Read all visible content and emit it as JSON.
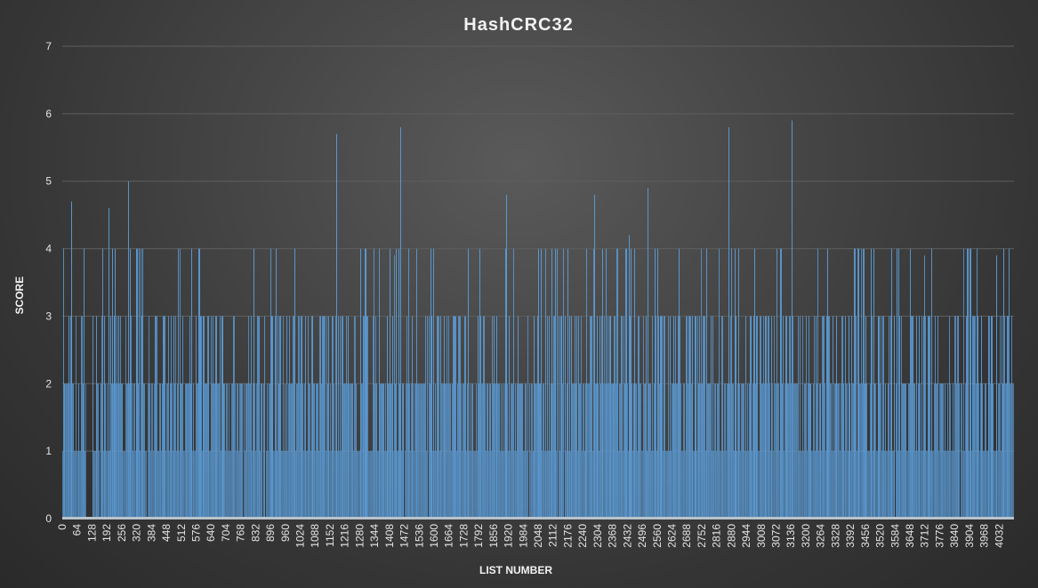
{
  "chart_data": {
    "type": "bar",
    "title": "HashCRC32",
    "xlabel": "LIST NUMBER",
    "ylabel": "SCORE",
    "ylim": [
      0,
      7
    ],
    "yticks": [
      "0",
      "1",
      "2",
      "3",
      "4",
      "5",
      "6",
      "7"
    ],
    "xlim": [
      0,
      4095
    ],
    "xticks": [
      "0",
      "64",
      "128",
      "192",
      "256",
      "320",
      "384",
      "448",
      "512",
      "576",
      "640",
      "704",
      "768",
      "832",
      "896",
      "960",
      "1024",
      "1088",
      "1152",
      "1216",
      "1280",
      "1344",
      "1408",
      "1472",
      "1536",
      "1600",
      "1664",
      "1728",
      "1792",
      "1856",
      "1920",
      "1984",
      "2048",
      "2112",
      "2176",
      "2240",
      "2304",
      "2368",
      "2432",
      "2496",
      "2560",
      "2624",
      "2688",
      "2752",
      "2816",
      "2880",
      "2944",
      "3008",
      "3072",
      "3136",
      "3200",
      "3264",
      "3328",
      "3392",
      "3456",
      "3520",
      "3584",
      "3648",
      "3712",
      "3776",
      "3840",
      "3904",
      "3968",
      "4032"
    ],
    "grid": true,
    "bar_color": "#5b9bd5",
    "notable_values": [
      {
        "x": 8,
        "value": 1
      },
      {
        "x": 30,
        "value": 2
      },
      {
        "x": 40,
        "value": 4.7
      },
      {
        "x": 96,
        "value": 1
      },
      {
        "x": 150,
        "value": 1
      },
      {
        "x": 180,
        "value": 2
      },
      {
        "x": 200,
        "value": 4.6
      },
      {
        "x": 220,
        "value": 1
      },
      {
        "x": 260,
        "value": 1
      },
      {
        "x": 285,
        "value": 5
      },
      {
        "x": 300,
        "value": 2
      },
      {
        "x": 330,
        "value": 4
      },
      {
        "x": 420,
        "value": 1
      },
      {
        "x": 500,
        "value": 4
      },
      {
        "x": 600,
        "value": 3
      },
      {
        "x": 620,
        "value": 2
      },
      {
        "x": 730,
        "value": 2
      },
      {
        "x": 860,
        "value": 2
      },
      {
        "x": 920,
        "value": 4
      },
      {
        "x": 1000,
        "value": 4
      },
      {
        "x": 1060,
        "value": 1
      },
      {
        "x": 1100,
        "value": 2
      },
      {
        "x": 1180,
        "value": 5.7
      },
      {
        "x": 1250,
        "value": 2
      },
      {
        "x": 1380,
        "value": 2
      },
      {
        "x": 1435,
        "value": 3
      },
      {
        "x": 1430,
        "value": 3.9
      },
      {
        "x": 1455,
        "value": 5.8
      },
      {
        "x": 1640,
        "value": 2
      },
      {
        "x": 1700,
        "value": 2
      },
      {
        "x": 1780,
        "value": 2
      },
      {
        "x": 1910,
        "value": 4.8
      },
      {
        "x": 1950,
        "value": 2
      },
      {
        "x": 1995,
        "value": 2
      },
      {
        "x": 2030,
        "value": 3
      },
      {
        "x": 2220,
        "value": 2
      },
      {
        "x": 2290,
        "value": 4.8
      },
      {
        "x": 2440,
        "value": 4.2
      },
      {
        "x": 2520,
        "value": 4.9
      },
      {
        "x": 2580,
        "value": 3
      },
      {
        "x": 2700,
        "value": 2
      },
      {
        "x": 2840,
        "value": 2
      },
      {
        "x": 2870,
        "value": 5.8
      },
      {
        "x": 2960,
        "value": 3
      },
      {
        "x": 3010,
        "value": 2
      },
      {
        "x": 3090,
        "value": 3
      },
      {
        "x": 3110,
        "value": 2
      },
      {
        "x": 3140,
        "value": 5.9
      },
      {
        "x": 3300,
        "value": 3
      },
      {
        "x": 3440,
        "value": 4
      },
      {
        "x": 3570,
        "value": 2
      },
      {
        "x": 3590,
        "value": 2
      },
      {
        "x": 3710,
        "value": 3.9
      },
      {
        "x": 3730,
        "value": 2
      },
      {
        "x": 3840,
        "value": 3
      },
      {
        "x": 3870,
        "value": 2
      },
      {
        "x": 3910,
        "value": 4
      },
      {
        "x": 3960,
        "value": 2
      },
      {
        "x": 4020,
        "value": 3.9
      },
      {
        "x": 4050,
        "value": 4
      },
      {
        "x": 4085,
        "value": 3
      }
    ]
  }
}
